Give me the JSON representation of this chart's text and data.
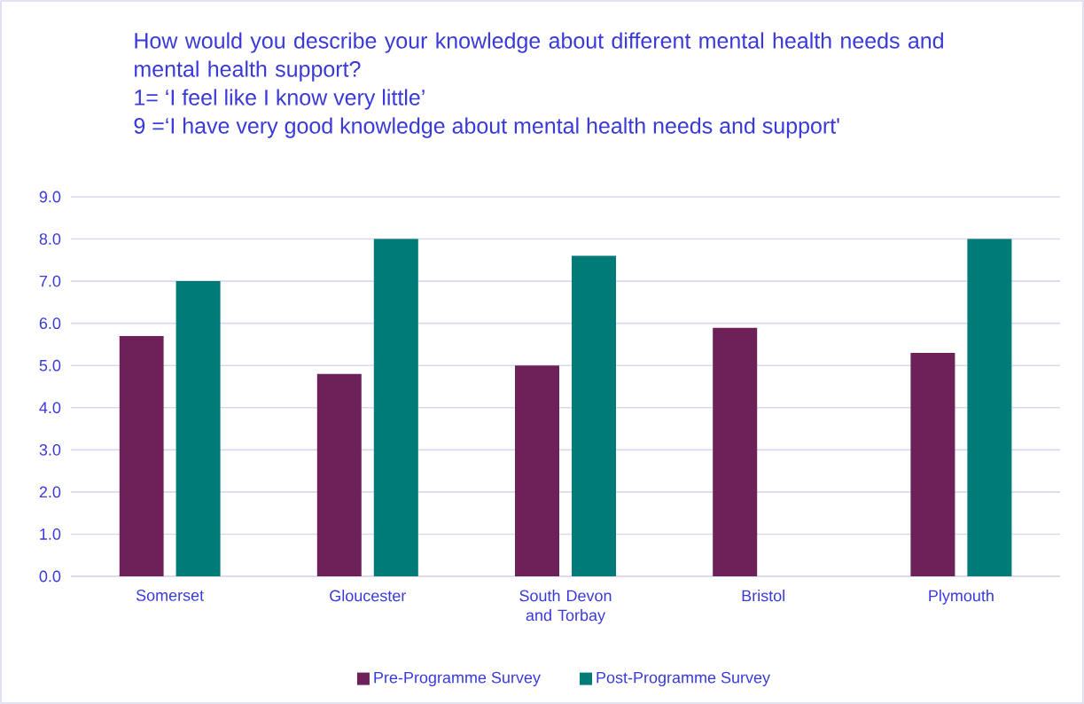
{
  "chart_data": {
    "type": "bar",
    "title": "How would you describe your knowledge about different mental health needs and mental health support?",
    "annotations": [
      "1= ‘I feel like I know very little’",
      "9 =‘I have very good knowledge about mental health needs and support'"
    ],
    "categories": [
      "Somerset",
      "Gloucester",
      "South Devon and Torbay",
      "Bristol",
      "Plymouth"
    ],
    "series": [
      {
        "name": "Pre-Programme Survey",
        "color": "#6d2158",
        "values": [
          5.7,
          4.8,
          5.0,
          5.9,
          5.3
        ]
      },
      {
        "name": "Post-Programme Survey",
        "color": "#007b77",
        "values": [
          7.0,
          8.0,
          7.6,
          null,
          8.0
        ]
      }
    ],
    "ylim": [
      0,
      9
    ],
    "yticks": [
      {
        "value": 0,
        "label": "0.0"
      },
      {
        "value": 1,
        "label": "1.0"
      },
      {
        "value": 2,
        "label": "2.0"
      },
      {
        "value": 3,
        "label": "3.0"
      },
      {
        "value": 4,
        "label": "4.0"
      },
      {
        "value": 5,
        "label": "5.0"
      },
      {
        "value": 6,
        "label": "6.0"
      },
      {
        "value": 7,
        "label": "7.0"
      },
      {
        "value": 8,
        "label": "8.0"
      },
      {
        "value": 9,
        "label": "9.0"
      }
    ],
    "grid": "y",
    "legend": "bottom"
  }
}
